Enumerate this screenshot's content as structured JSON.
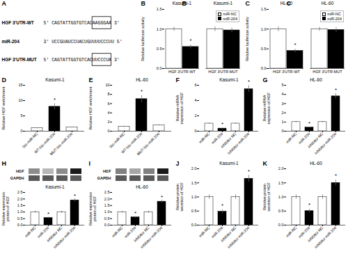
{
  "chart_data": [
    {
      "type": "text",
      "annotations": [
        {
          "text": "A"
        }
      ],
      "rows": [
        {
          "label": "HGF 3'UTR-WT",
          "sequence": "5' CAGTATTGGTGTCAC",
          "boxed": "AAGGGAA",
          "end": " 3'"
        },
        {
          "label": "miR-204",
          "sequence": "3' UCCGUAUCCUACUGUUUUCCCUU 5'"
        },
        {
          "label": "HGF 3'UTR-MUT",
          "sequence": "5' CAGTATTGGTGTCAC",
          "boxed": "UUCCCUA",
          "end": " 3'"
        }
      ]
    },
    {
      "type": "bar",
      "title": "Kasumi-1",
      "ylabel": "Relative luciferase activity",
      "categories": [
        "HGF 3'UTR-WT",
        "HGF 3'UTR-MUT"
      ],
      "series": [
        {
          "name": "miR-NC",
          "color": "white",
          "values": [
            1.0,
            1.0
          ],
          "errors": [
            0.05,
            0.06
          ]
        },
        {
          "name": "miR-204",
          "color": "black",
          "values": [
            0.55,
            0.97
          ],
          "errors": [
            0.05,
            0.06
          ]
        }
      ],
      "ylim": [
        0,
        1.5
      ],
      "yticks": [
        {
          "value": 0,
          "label": "0.0"
        },
        0.5,
        {
          "value": 1,
          "label": "1.0"
        },
        1.5
      ],
      "legend": "upper right",
      "annotations": [
        {
          "text": "B"
        },
        {
          "text": "*",
          "x": "HGF 3'UTR-WT",
          "series": "miR-204"
        }
      ]
    },
    {
      "type": "bar",
      "title": "HL-60",
      "ylabel": "Relative luciferase activity",
      "categories": [
        "HGF 3'UTR-WT",
        "HGF 3'UTR-MUT"
      ],
      "series": [
        {
          "name": "miR-NC",
          "color": "white",
          "values": [
            1.0,
            1.0
          ],
          "errors": [
            0.06,
            0.05
          ]
        },
        {
          "name": "miR-204",
          "color": "black",
          "values": [
            0.45,
            0.98
          ],
          "errors": [
            0.04,
            0.06
          ]
        }
      ],
      "ylim": [
        0,
        1.5
      ],
      "yticks": [
        {
          "value": 0,
          "label": "0.0"
        },
        0.5,
        {
          "value": 1,
          "label": "1.0"
        },
        1.5
      ],
      "legend": "upper right",
      "annotations": [
        {
          "text": "C"
        },
        {
          "text": "*",
          "x": "HGF 3'UTR-WT",
          "series": "miR-204"
        }
      ]
    },
    {
      "type": "bar",
      "title": "Kasumi-1",
      "ylabel": "Relative HGF enrichment",
      "categories": [
        "bio-miR-NC",
        "WT-bio-miR-204",
        "MUT-bio-miR-204"
      ],
      "values": [
        1.0,
        8.0,
        1.2
      ],
      "errors": [
        0.15,
        1.0,
        0.12
      ],
      "colors": [
        "white",
        "black",
        "white"
      ],
      "ylim": [
        0,
        15
      ],
      "yticks": [
        0,
        5,
        10,
        15
      ],
      "annotations": [
        {
          "text": "D"
        },
        {
          "text": "*",
          "x": "WT-bio-miR-204"
        }
      ]
    },
    {
      "type": "bar",
      "title": "HL-60",
      "ylabel": "Relative HGF enrichment",
      "categories": [
        "bio-miR-NC",
        "WT-bio-miR-204",
        "MUT-bio-miR-204"
      ],
      "values": [
        1.0,
        7.0,
        1.3
      ],
      "errors": [
        0.12,
        0.8,
        0.12
      ],
      "colors": [
        "white",
        "black",
        "white"
      ],
      "ylim": [
        0,
        10
      ],
      "yticks": [
        0,
        2,
        4,
        6,
        8,
        10
      ],
      "annotations": [
        {
          "text": "E"
        },
        {
          "text": "*",
          "x": "WT-bio-miR-204"
        }
      ]
    },
    {
      "type": "bar",
      "title": "Kasumi-1",
      "ylabel": "Relative mRNA\nexpression of HGF",
      "categories": [
        "miR-NC",
        "miR-204",
        "inhibitor NC",
        "inhibitor miR-204"
      ],
      "values": [
        1.0,
        0.35,
        1.0,
        5.5
      ],
      "errors": [
        0.08,
        0.05,
        0.08,
        0.45
      ],
      "colors": [
        "white",
        "black",
        "white",
        "black"
      ],
      "ylim": [
        0,
        6
      ],
      "yticks": [
        0,
        2,
        4,
        6
      ],
      "annotations": [
        {
          "text": "F"
        },
        {
          "text": "*",
          "x": "miR-204"
        },
        {
          "text": "*",
          "x": "inhibitor miR-204"
        }
      ]
    },
    {
      "type": "bar",
      "title": "HL-60",
      "ylabel": "Relative mRNA\nexpression of HGF",
      "categories": [
        "miR-NC",
        "miR-204",
        "inhibitor NC",
        "inhibitor miR-204"
      ],
      "values": [
        1.0,
        0.4,
        1.0,
        3.8
      ],
      "errors": [
        0.08,
        0.05,
        0.08,
        0.3
      ],
      "colors": [
        "white",
        "black",
        "white",
        "black"
      ],
      "ylim": [
        0,
        5
      ],
      "yticks": [
        0,
        1,
        2,
        3,
        4,
        5
      ],
      "annotations": [
        {
          "text": "G"
        },
        {
          "text": "*",
          "x": "miR-204"
        },
        {
          "text": "*",
          "x": "inhibitor miR-204"
        }
      ]
    },
    {
      "type": "blot",
      "annotations": [
        {
          "text": "H"
        }
      ],
      "series": [
        {
          "name": "HGF",
          "colors": [
            "#8c8c8c",
            "#b8b8b8",
            "#8c8c8c",
            "#1a1a1a"
          ]
        },
        {
          "name": "GAPDH",
          "colors": [
            "#595959",
            "#595959",
            "#595959",
            "#595959"
          ]
        }
      ]
    },
    {
      "type": "bar",
      "title": "Kasumi-1",
      "ylabel": "Relative expression\nprotein of HGF",
      "categories": [
        "miR-NC",
        "miR-204",
        "inhibitor NC",
        "inhibitor miR-204"
      ],
      "values": [
        1.0,
        0.55,
        1.0,
        1.9
      ],
      "errors": [
        0.08,
        0.06,
        0.08,
        0.12
      ],
      "colors": [
        "white",
        "black",
        "white",
        "black"
      ],
      "ylim": [
        0,
        2.5
      ],
      "yticks": [
        {
          "value": 0,
          "label": "0.0"
        },
        0.5,
        {
          "value": 1,
          "label": "1.0"
        },
        1.5,
        {
          "value": 2,
          "label": "2.0"
        },
        2.5
      ],
      "annotations": [
        {
          "text": "*",
          "x": "miR-204"
        },
        {
          "text": "*",
          "x": "inhibitor miR-204"
        }
      ]
    },
    {
      "type": "blot",
      "annotations": [
        {
          "text": "I"
        }
      ],
      "series": [
        {
          "name": "HGF",
          "colors": [
            "#808080",
            "#a6a6a6",
            "#808080",
            "#1a1a1a"
          ]
        },
        {
          "name": "GAPDH",
          "colors": [
            "#595959",
            "#595959",
            "#595959",
            "#595959"
          ]
        }
      ]
    },
    {
      "type": "bar",
      "title": "HL-60",
      "ylabel": "Relative expression\nprotein of HGF",
      "categories": [
        "miR-NC",
        "miR-204",
        "inhibitor NC",
        "inhibitor miR-204"
      ],
      "values": [
        1.0,
        0.6,
        1.0,
        1.8
      ],
      "errors": [
        0.08,
        0.06,
        0.08,
        0.12
      ],
      "colors": [
        "white",
        "black",
        "white",
        "black"
      ],
      "ylim": [
        0,
        2.5
      ],
      "yticks": [
        {
          "value": 0,
          "label": "0.0"
        },
        0.5,
        {
          "value": 1,
          "label": "1.0"
        },
        1.5,
        {
          "value": 2,
          "label": "2.0"
        },
        2.5
      ],
      "annotations": [
        {
          "text": "*",
          "x": "miR-204"
        },
        {
          "text": "*",
          "x": "inhibitor miR-204"
        }
      ]
    },
    {
      "type": "bar",
      "title": "Kasumi-1",
      "ylabel": "Relative protein\nsecretion of HGF",
      "categories": [
        "miR-NC",
        "miR-204",
        "inhibitor NC",
        "inhibitor miR-204"
      ],
      "values": [
        1.0,
        0.48,
        1.0,
        1.65
      ],
      "errors": [
        0.08,
        0.07,
        0.08,
        0.12
      ],
      "colors": [
        "white",
        "black",
        "white",
        "black"
      ],
      "ylim": [
        0,
        2.0
      ],
      "yticks": [
        {
          "value": 0,
          "label": "0.0"
        },
        0.5,
        {
          "value": 1,
          "label": "1.0"
        },
        1.5,
        {
          "value": 2,
          "label": "2.0"
        }
      ],
      "annotations": [
        {
          "text": "J"
        },
        {
          "text": "*",
          "x": "miR-204"
        },
        {
          "text": "*",
          "x": "inhibitor miR-204"
        }
      ]
    },
    {
      "type": "bar",
      "title": "HL-60",
      "ylabel": "Relative protein\nsecretion of HGF",
      "categories": [
        "miR-NC",
        "miR-204",
        "inhibitor NC",
        "inhibitor miR-204"
      ],
      "values": [
        1.0,
        0.5,
        1.0,
        1.5
      ],
      "errors": [
        0.08,
        0.07,
        0.08,
        0.1
      ],
      "colors": [
        "white",
        "black",
        "white",
        "black"
      ],
      "ylim": [
        0,
        2.0
      ],
      "yticks": [
        {
          "value": 0,
          "label": "0.0"
        },
        0.5,
        {
          "value": 1,
          "label": "1.0"
        },
        1.5,
        {
          "value": 2,
          "label": "2.0"
        }
      ],
      "annotations": [
        {
          "text": "K"
        },
        {
          "text": "*",
          "x": "miR-204"
        },
        {
          "text": "*",
          "x": "inhibitor miR-204"
        }
      ]
    }
  ]
}
